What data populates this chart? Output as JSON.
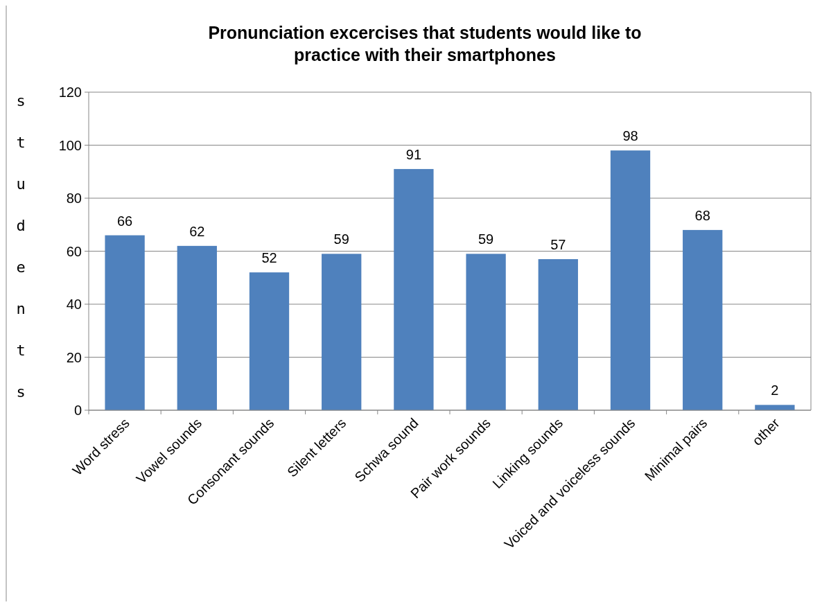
{
  "chart_data": {
    "type": "bar",
    "title": "Pronunciation excercises that students would like to practice with their smartphones",
    "ylabel": "students",
    "categories": [
      "Word stress",
      "Vowel sounds",
      "Consonant sounds",
      "Silent letters",
      "Schwa sound",
      "Pair work sounds",
      "Linking sounds",
      "Voiced and voiceless sounds",
      "Minimal pairs",
      "other"
    ],
    "values": [
      66,
      62,
      52,
      59,
      91,
      59,
      57,
      98,
      68,
      2
    ],
    "color": "#4f81bd",
    "ylim": [
      0,
      120
    ],
    "yticks": [
      0,
      20,
      40,
      60,
      80,
      100,
      120
    ],
    "grid": "y",
    "data_labels": true
  }
}
